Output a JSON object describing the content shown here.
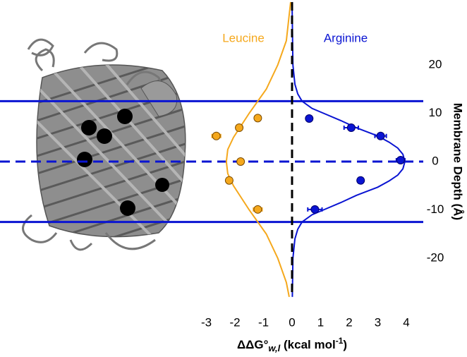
{
  "chart_data": {
    "type": "scatter",
    "xlabel": {
      "main": "ΔΔG°",
      "sub": "w,l",
      "unit": " (kcal mol",
      "sup": "-1",
      "close": ")"
    },
    "ylabel": "Membrane Depth (Å)",
    "xlim": [
      -3.2,
      4.2
    ],
    "ylim": [
      -28,
      33
    ],
    "xticks": [
      -3,
      -2,
      -1,
      0,
      1,
      2,
      3,
      4
    ],
    "yticks": [
      20,
      10,
      0,
      -10,
      -20
    ],
    "reference_lines": [
      {
        "value": 12.5,
        "style": "solid",
        "color": "#0a14d2"
      },
      {
        "value": 0,
        "style": "dashed",
        "color": "#0a14d2"
      },
      {
        "value": -12.5,
        "style": "solid",
        "color": "#0a14d2"
      }
    ],
    "vline": {
      "value": 0,
      "color": "#000000"
    },
    "series": [
      {
        "name": "Leucine",
        "color": "#f5a81c",
        "x": [
          -1.2,
          -1.85,
          -2.65,
          -1.8,
          -2.2,
          -1.2
        ],
        "y": [
          9,
          7,
          5.3,
          0,
          -3.9,
          -9.9
        ],
        "xerr": [
          0,
          0,
          0.15,
          0.1,
          0,
          0.15
        ],
        "fit": {
          "x": [
            -0.05,
            -0.2,
            -0.5,
            -0.9,
            -1.5,
            -2.05,
            -2.25,
            -2.3,
            -2.25,
            -2.05,
            -1.5,
            -0.9,
            -0.5,
            -0.2,
            -0.1
          ],
          "y": [
            33,
            25,
            20,
            15,
            10,
            5,
            2.5,
            0,
            -2.5,
            -5,
            -10,
            -15,
            -20,
            -25,
            -28
          ]
        }
      },
      {
        "name": "Arginine",
        "color": "#0a14d2",
        "x": [
          0.6,
          2.07,
          3.1,
          3.8,
          2.4,
          0.8
        ],
        "y": [
          8.9,
          7,
          5.3,
          0.3,
          -3.9,
          -9.9
        ],
        "xerr": [
          0,
          0.25,
          0.2,
          0.15,
          0.1,
          0.25
        ],
        "fit": {
          "x": [
            0,
            0.03,
            0.1,
            0.2,
            0.35,
            0.7,
            1.1,
            1.7,
            2.25,
            3.0,
            3.4,
            3.7,
            3.88,
            3.95,
            3.88,
            3.7,
            3.4,
            3.0,
            2.25,
            1.7,
            1.1,
            0.7,
            0.35,
            0.2,
            0.1,
            0.03,
            0.01
          ],
          "y": [
            33,
            20,
            16,
            14,
            12.5,
            11,
            10,
            8.5,
            7,
            5.3,
            4,
            2.8,
            1.5,
            0,
            -1.5,
            -2.8,
            -4,
            -5.3,
            -7,
            -8.5,
            -10,
            -11,
            -12.5,
            -14,
            -16,
            -20,
            -28
          ]
        }
      }
    ]
  }
}
